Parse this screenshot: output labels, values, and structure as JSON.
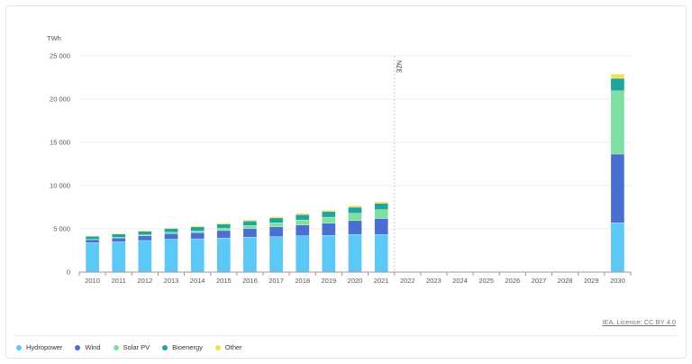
{
  "chart_data": {
    "type": "bar",
    "stacked": true,
    "unit_label": "TWh",
    "title": "",
    "xlabel": "",
    "ylabel": "TWh",
    "ylim": [
      0,
      25000
    ],
    "yticks": [
      0,
      5000,
      10000,
      15000,
      20000,
      25000
    ],
    "ytick_labels": [
      "0",
      "5 000",
      "10 000",
      "15 000",
      "20 000",
      "25 000"
    ],
    "grid": true,
    "legend_position": "bottom-left",
    "categories": [
      "2010",
      "2011",
      "2012",
      "2013",
      "2014",
      "2015",
      "2016",
      "2017",
      "2018",
      "2019",
      "2020",
      "2021",
      "2022",
      "2023",
      "2024",
      "2025",
      "2026",
      "2027",
      "2028",
      "2029",
      "2030"
    ],
    "series": [
      {
        "name": "Hydropower",
        "color": "#5bc8f5",
        "values": [
          3400,
          3500,
          3650,
          3800,
          3850,
          3950,
          4050,
          4100,
          4200,
          4250,
          4350,
          4350,
          null,
          null,
          null,
          null,
          null,
          null,
          null,
          null,
          5700
        ]
      },
      {
        "name": "Wind",
        "color": "#4b6fd1",
        "values": [
          350,
          450,
          550,
          650,
          700,
          850,
          1000,
          1150,
          1250,
          1400,
          1600,
          1850,
          null,
          null,
          null,
          null,
          null,
          null,
          null,
          null,
          7950
        ]
      },
      {
        "name": "Solar PV",
        "color": "#7ee0a0",
        "values": [
          30,
          60,
          100,
          150,
          200,
          250,
          330,
          450,
          580,
          700,
          850,
          1020,
          null,
          null,
          null,
          null,
          null,
          null,
          null,
          null,
          7300
        ]
      },
      {
        "name": "Bioenergy",
        "color": "#1fa59b",
        "values": [
          350,
          380,
          420,
          440,
          470,
          500,
          520,
          560,
          600,
          650,
          700,
          720,
          null,
          null,
          null,
          null,
          null,
          null,
          null,
          null,
          1450
        ]
      },
      {
        "name": "Other",
        "color": "#f4e04d",
        "values": [
          80,
          90,
          100,
          110,
          120,
          130,
          140,
          150,
          160,
          170,
          180,
          190,
          null,
          null,
          null,
          null,
          null,
          null,
          null,
          null,
          500
        ]
      }
    ],
    "annotations": [
      {
        "label": "NZE",
        "at": "2021.5"
      }
    ]
  },
  "credit_text": "IEA. Licence: CC BY 4.0"
}
